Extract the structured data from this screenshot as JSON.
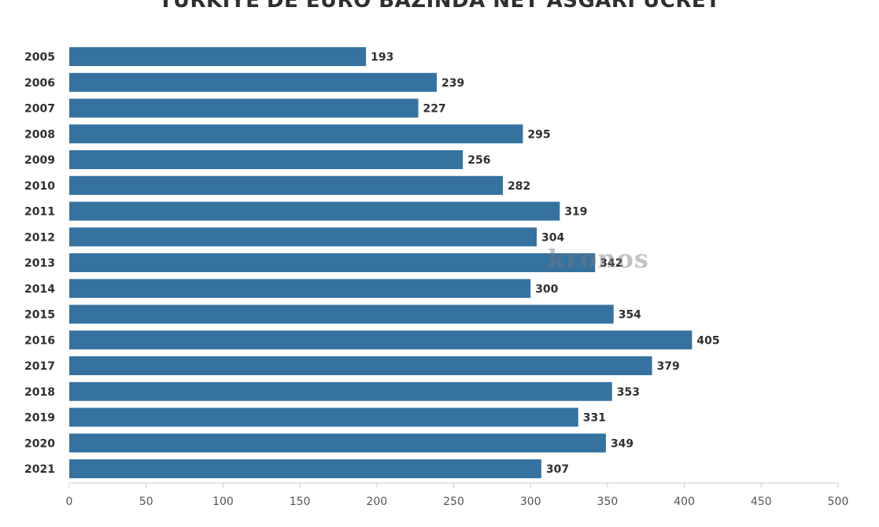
{
  "title": "TÜRKİYE'DE EURO BAZINDA NET ASGARİ ÜCRET",
  "watermark": "kronos",
  "colors": {
    "bar": "#3572a0",
    "text": "#2f2f2f",
    "axis": "#cccccc",
    "tick": "#555555"
  },
  "chart_data": {
    "type": "bar",
    "orientation": "horizontal",
    "categories": [
      "2005",
      "2006",
      "2007",
      "2008",
      "2009",
      "2010",
      "2011",
      "2012",
      "2013",
      "2014",
      "2015",
      "2016",
      "2017",
      "2018",
      "2019",
      "2020",
      "2021"
    ],
    "values": [
      193,
      239,
      227,
      295,
      256,
      282,
      319,
      304,
      342,
      300,
      354,
      405,
      379,
      353,
      331,
      349,
      307
    ],
    "xlim": [
      0,
      500
    ],
    "xticks": [
      0,
      50,
      100,
      150,
      200,
      250,
      300,
      350,
      400,
      450,
      500
    ],
    "grid": false
  }
}
